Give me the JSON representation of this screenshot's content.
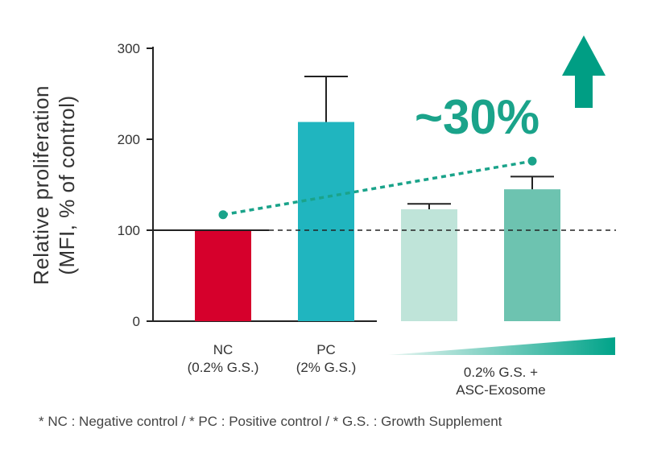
{
  "chart_data": {
    "type": "bar",
    "ylabel": [
      "Relative proliferation",
      "(MFI, % of control)"
    ],
    "ylim": [
      0,
      300
    ],
    "yticks": [
      "0",
      "100",
      "200",
      "300"
    ],
    "categories": [
      {
        "lines": [
          "NC",
          "(0.2% G.S.)"
        ],
        "value": 100,
        "error": 0,
        "color": "#d6002c"
      },
      {
        "lines": [
          "PC",
          "(2% G.S.)"
        ],
        "value": 219,
        "error": 50,
        "color": "#20b5bf"
      },
      {
        "lines": [],
        "value": 123,
        "error": 6,
        "color": "#bfe4d9"
      },
      {
        "lines": [],
        "value": 145,
        "error": 14,
        "color": "#6dc3b0"
      }
    ],
    "group_label": [
      "0.2% G.S. +",
      "ASC-Exosome"
    ],
    "reference_line": 100,
    "trend": {
      "from": 117,
      "to": 176,
      "color": "#1aa38a"
    },
    "annotation": "~30%",
    "arrow_color": "#009e84"
  },
  "footnote": "* NC : Negative control  /  * PC : Positive control  /  * G.S. : Growth Supplement"
}
